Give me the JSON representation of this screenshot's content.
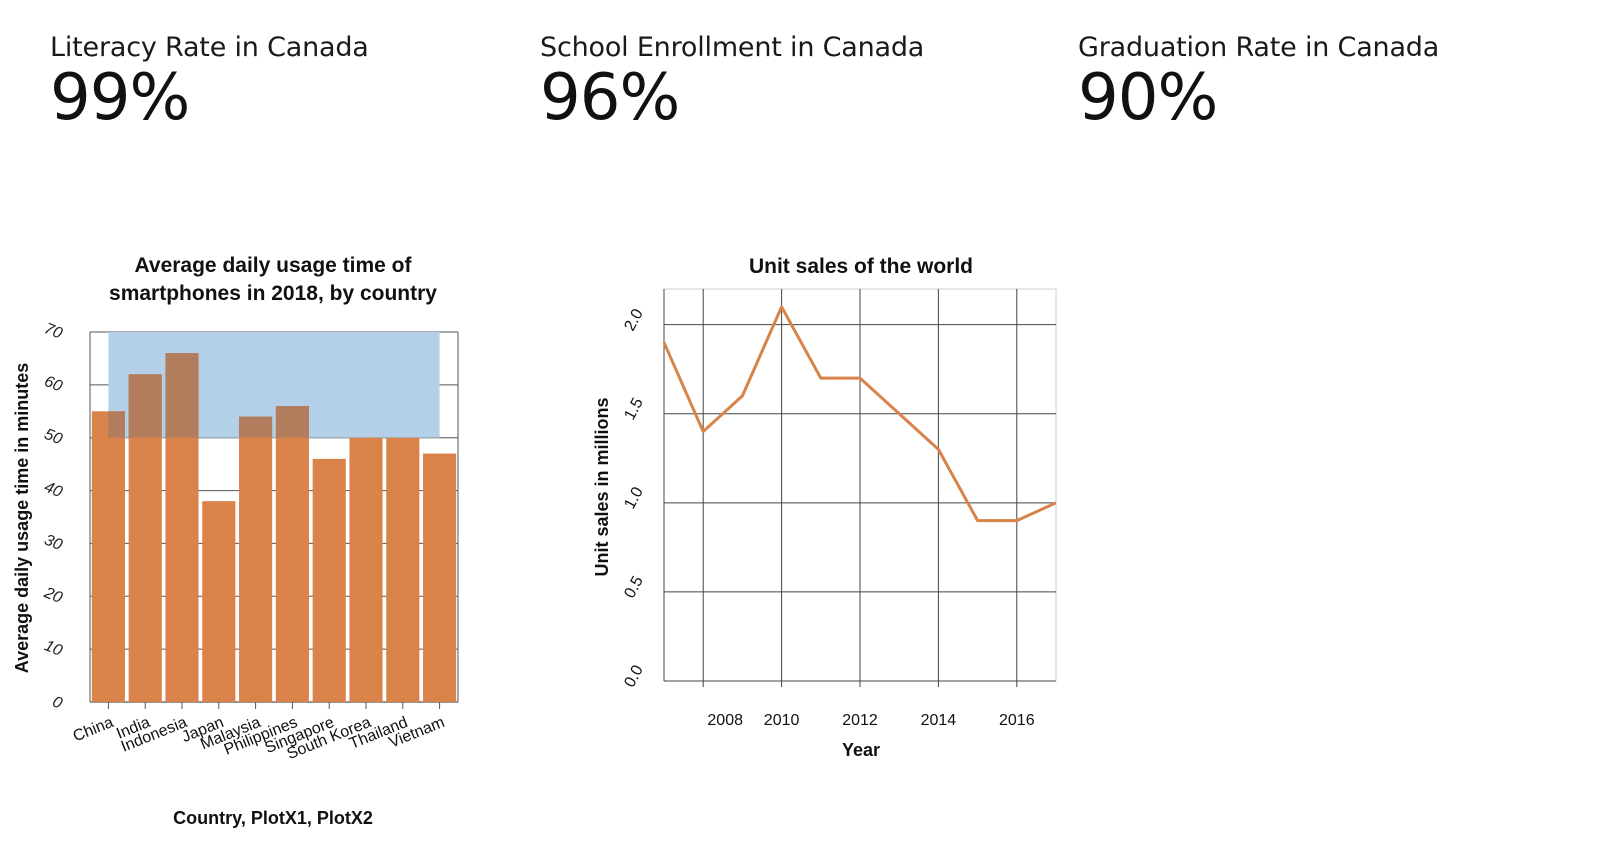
{
  "kpis": [
    {
      "label": "Literacy Rate in Canada",
      "value": "99%"
    },
    {
      "label": "School Enrollment in Canada",
      "value": "96%"
    },
    {
      "label": "Graduation Rate in Canada",
      "value": "90%"
    }
  ],
  "chart_data": [
    {
      "type": "bar",
      "title_lines": [
        "Average daily usage time of",
        "smartphones in 2018, by country"
      ],
      "xlabel": "Country, PlotX1, PlotX2",
      "ylabel": "Average daily usage time in minutes",
      "categories": [
        "China",
        "India",
        "Indonesia",
        "Japan",
        "Malaysia",
        "Philippines",
        "Singapore",
        "South Korea",
        "Thailand",
        "Vietnam"
      ],
      "values": [
        55,
        62,
        66,
        38,
        54,
        56,
        46,
        50,
        50,
        47
      ],
      "ylim": [
        0,
        70
      ],
      "yticks": [
        0,
        10,
        20,
        30,
        40,
        50,
        60,
        70
      ],
      "highlight_band": {
        "x_from": "China",
        "x_to": "Vietnam",
        "y_from": 50,
        "y_to": 70
      },
      "colors": {
        "bar": "#D9834A",
        "band": "#B4D0E9",
        "overlap": "#B27D5C"
      },
      "grid": true
    },
    {
      "type": "line",
      "title": "Unit sales of the world",
      "xlabel": "Year",
      "ylabel": "Unit sales in millions",
      "x": [
        2007,
        2008,
        2009,
        2010,
        2011,
        2012,
        2013,
        2014,
        2015,
        2016,
        2017
      ],
      "y": [
        1.9,
        1.4,
        1.6,
        2.1,
        1.7,
        1.7,
        1.5,
        1.3,
        0.9,
        0.9,
        1.0
      ],
      "xticks": [
        2008,
        2010,
        2012,
        2014,
        2016
      ],
      "yticks": [
        "0.0",
        "0.5",
        "1.0",
        "1.5",
        "2.0"
      ],
      "xlim": [
        2007,
        2017
      ],
      "ylim": [
        0,
        2.2
      ],
      "colors": {
        "line": "#D9834A"
      },
      "grid": true
    }
  ]
}
